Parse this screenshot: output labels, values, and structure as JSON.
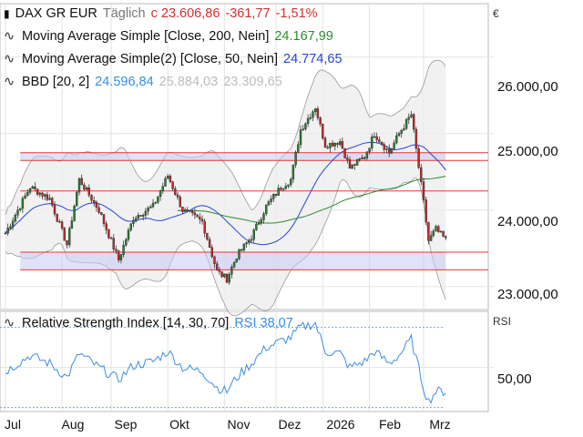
{
  "header": {
    "instrument": "DAX GR EUR",
    "interval": "Täglich",
    "last": "c 23.606,86",
    "change": "-361,77",
    "change_pct": "-1,51%",
    "ma200_label": "Moving Average Simple  [Close, 200, Nein]",
    "ma200_value": "24.167,99",
    "ma50_label": "Moving Average Simple(2)  [Close, 50, Nein]",
    "ma50_value": "24.774,65",
    "bbd_label": "BBD  [20, 2]",
    "bbd_mid": "24.596,84",
    "bbd_up": "25.884,03",
    "bbd_low": "23.309,65",
    "rsi_label": "Relative Strength Index  [14, 30, 70]",
    "rsi_value": "RSI 38,07"
  },
  "axis": {
    "currency": "€",
    "rsi_unit": "RSI",
    "price_ticks": [
      "26.000,00",
      "25.000,00",
      "24.000,00",
      "23.000,00"
    ],
    "price_tick_values": [
      26000,
      25000,
      24000,
      23000
    ],
    "rsi_ticks": [
      "50,00"
    ],
    "rsi_tick_values": [
      50
    ],
    "months": [
      "Jul",
      "Aug",
      "Sep",
      "Okt",
      "Nov",
      "Dez",
      "2026",
      "Feb",
      "Mrz"
    ]
  },
  "colors": {
    "up": "#2e7d32",
    "down": "#c62828",
    "ma50": "#2447d6",
    "ma200": "#2e8b2e",
    "bb": "#999999",
    "rsi": "#3a8ee6",
    "negative": "#d32f2f",
    "positive": "#2e7d32"
  },
  "chart_data": {
    "type": "candlestick",
    "price_ylim": [
      22700,
      26700
    ],
    "rsi_ylim": [
      28,
      78
    ],
    "month_starts": [
      0,
      23,
      43,
      66,
      89,
      110,
      129,
      148,
      170
    ],
    "anchors_day": [
      0,
      10,
      18,
      25,
      30,
      38,
      46,
      52,
      60,
      66,
      72,
      80,
      86,
      90,
      94,
      100,
      106,
      112,
      116,
      120,
      126,
      130,
      136,
      140,
      146,
      150,
      156,
      160,
      165,
      170,
      172,
      175,
      179
    ],
    "anchors_close": [
      23700,
      24300,
      24150,
      23550,
      24400,
      24000,
      23350,
      23900,
      24050,
      24450,
      24000,
      23850,
      23200,
      23100,
      23400,
      23650,
      24050,
      24300,
      24400,
      25050,
      25350,
      24850,
      24900,
      24550,
      24700,
      25000,
      24750,
      25000,
      25250,
      24100,
      23600,
      23750,
      23607
    ],
    "rsi_anchors_day": [
      0,
      10,
      18,
      25,
      30,
      38,
      46,
      52,
      60,
      66,
      72,
      80,
      86,
      90,
      94,
      100,
      106,
      112,
      116,
      120,
      126,
      130,
      136,
      140,
      146,
      150,
      156,
      160,
      165,
      170,
      172,
      175,
      179
    ],
    "rsi_values": [
      48,
      56,
      52,
      45,
      57,
      50,
      44,
      51,
      53,
      58,
      50,
      48,
      40,
      38,
      45,
      52,
      60,
      63,
      65,
      70,
      72,
      58,
      57,
      50,
      53,
      58,
      52,
      56,
      64,
      40,
      33,
      38,
      38.07
    ],
    "horizontal_levels": [
      24750,
      24650,
      24250,
      23450,
      23220
    ],
    "highlight_boxes": [
      [
        24650,
        24750
      ],
      [
        23220,
        23450
      ]
    ]
  }
}
